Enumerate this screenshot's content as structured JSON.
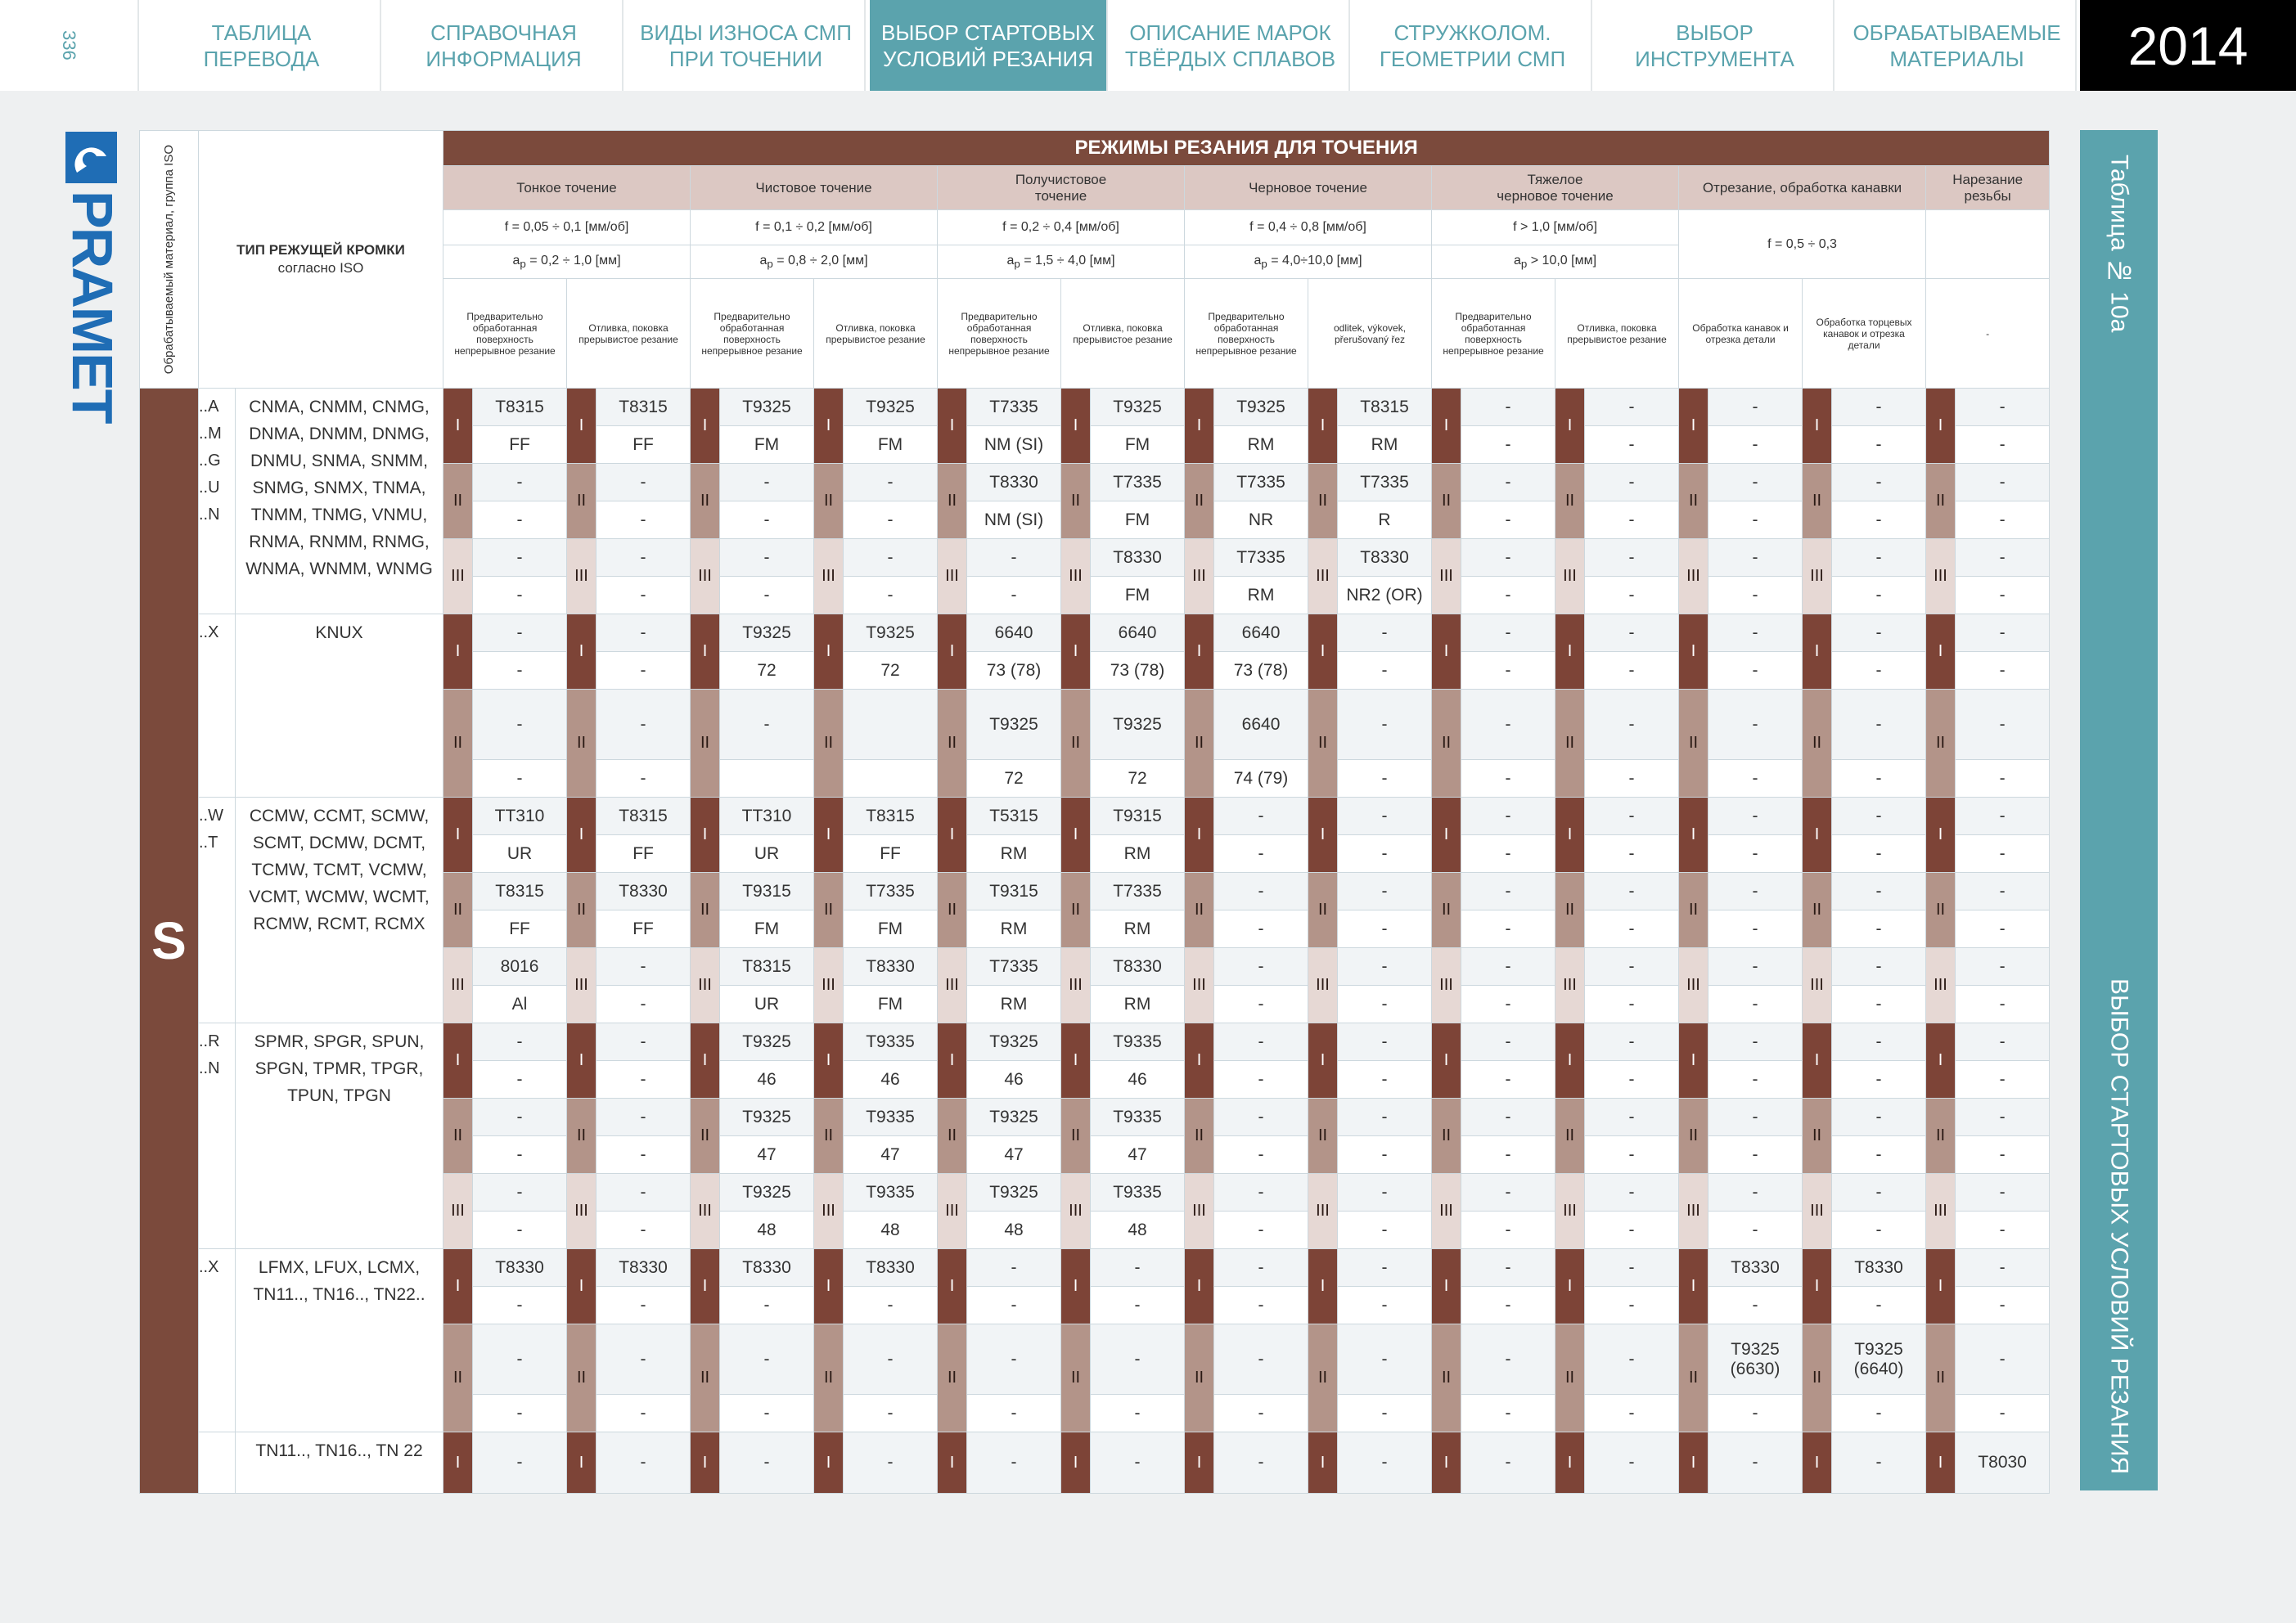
{
  "page_number": "336",
  "nav": {
    "active": 3,
    "tabs": [
      [
        "ТАБЛИЦА",
        "ПЕРЕВОДА"
      ],
      [
        "СПРАВОЧНАЯ",
        "ИНФОРМАЦИЯ"
      ],
      [
        "ВИДЫ ИЗНОСА СМП",
        "ПРИ ТОЧЕНИИ"
      ],
      [
        "ВЫБОР СТАРТОВЫХ",
        "УСЛОВИЙ РЕЗАНИЯ"
      ],
      [
        "ОПИСАНИЕ МАРОК",
        "ТВЁРДЫХ СПЛАВОВ"
      ],
      [
        "СТРУЖКОЛОМ.",
        "ГЕОМЕТРИИ СМП"
      ],
      [
        "ВЫБОР",
        "ИНСТРУМЕНТА"
      ],
      [
        "ОБРАБАТЫВАЕМЫЕ",
        "МАТЕРИАЛЫ"
      ]
    ]
  },
  "year": "2014",
  "logo": "PRAMET",
  "side": {
    "table_no": "Таблица № 10а",
    "title": "ВЫБОР СТАРТОВЫХ УСЛОВИЙ РЕЗАНИЯ"
  },
  "table": {
    "material_header": "Обрабатываемый материал, группа ISO",
    "type_header": [
      "ТИП РЕЖУЩЕЙ КРОМКИ",
      "согласно ISO"
    ],
    "title": "РЕЖИМЫ РЕЗАНИЯ ДЛЯ ТОЧЕНИЯ",
    "ap_symbol": "a",
    "ap_sub": "p",
    "operations": [
      {
        "name": [
          "Тонкое точение"
        ],
        "f": "f = 0,05 ÷ 0,1 [мм/об]",
        "ap": " = 0,2 ÷ 1,0 [мм]",
        "conditions": [
          "Предварительно обработанная поверхность непрерывное резание",
          "Отливка, поковка прерывистое резание"
        ]
      },
      {
        "name": [
          "Чистовое точение"
        ],
        "f": "f = 0,1 ÷ 0,2 [мм/об]",
        "ap": " = 0,8 ÷ 2,0 [мм]",
        "conditions": [
          "Предварительно обработанная поверхность непрерывное резание",
          "Отливка, поковка прерывистое резание"
        ]
      },
      {
        "name": [
          "Получистовое",
          "точение"
        ],
        "f": "f = 0,2 ÷ 0,4 [мм/об]",
        "ap": " = 1,5 ÷ 4,0 [мм]",
        "conditions": [
          "Предварительно обработанная поверхность непрерывное резание",
          "Отливка, поковка прерывистое резание"
        ]
      },
      {
        "name": [
          "Черновое точение"
        ],
        "f": "f = 0,4 ÷ 0,8 [мм/об]",
        "ap": " = 4,0÷10,0 [мм]",
        "conditions": [
          "Предварительно обработанная поверхность непрерывное резание",
          "odlitek, výkovek, přerušovaný řez"
        ]
      },
      {
        "name": [
          "Тяжелое",
          "черновое точение"
        ],
        "f": "f > 1,0 [мм/об]",
        "ap": " > 10,0 [мм]",
        "conditions": [
          "Предварительно обработанная поверхность непрерывное резание",
          "Отливка, поковка прерывистое резание"
        ]
      },
      {
        "name": [
          "Отрезание, обработка канавки"
        ],
        "f_ap": "f = 0,5 ÷ 0,3",
        "conditions": [
          "Обработка канавок и отрезка детали",
          "Обработка торцевых канавок и отрезка детали"
        ]
      },
      {
        "name": [
          "Нарезание",
          "резьбы"
        ],
        "conditions": [
          "-"
        ]
      }
    ],
    "material": "S",
    "groups": [
      {
        "codes": [
          "..A",
          "..M",
          "..G",
          "..U",
          "..N"
        ],
        "types": "CNMA, CNMM, CNMG, DNMA, DNMM, DNMG, DNMU, SNMA, SNMM, SNMG, SNMX, TNMA, TNMM, TNMG, VNMU, RNMA, RNMM, RNMG, WNMA, WNMM, WNMG",
        "levels": [
          {
            "level": "I",
            "cells": [
              [
                "T8315",
                "FF"
              ],
              [
                "T8315",
                "FF"
              ],
              [
                "T9325",
                "FM"
              ],
              [
                "T9325",
                "FM"
              ],
              [
                "T7335",
                "NM (SI)"
              ],
              [
                "T9325",
                "FM"
              ],
              [
                "T9325",
                "RM"
              ],
              [
                "T8315",
                "RM"
              ],
              [
                "-",
                "-"
              ],
              [
                "-",
                "-"
              ],
              [
                "-",
                "-"
              ],
              [
                "-",
                "-"
              ],
              [
                "-",
                "-"
              ]
            ]
          },
          {
            "level": "II",
            "cells": [
              [
                "-",
                "-"
              ],
              [
                "-",
                "-"
              ],
              [
                "-",
                "-"
              ],
              [
                "-",
                "-"
              ],
              [
                "T8330",
                "NM (SI)"
              ],
              [
                "T7335",
                "FM"
              ],
              [
                "T7335",
                "NR"
              ],
              [
                "T7335",
                "R"
              ],
              [
                "-",
                "-"
              ],
              [
                "-",
                "-"
              ],
              [
                "-",
                "-"
              ],
              [
                "-",
                "-"
              ],
              [
                "-",
                "-"
              ]
            ]
          },
          {
            "level": "III",
            "cells": [
              [
                "-",
                "-"
              ],
              [
                "-",
                "-"
              ],
              [
                "-",
                "-"
              ],
              [
                "-",
                "-"
              ],
              [
                "-",
                "-"
              ],
              [
                "T8330",
                "FM"
              ],
              [
                "T7335",
                "RM"
              ],
              [
                "T8330",
                "NR2 (OR)"
              ],
              [
                "-",
                "-"
              ],
              [
                "-",
                "-"
              ],
              [
                "-",
                "-"
              ],
              [
                "-",
                "-"
              ],
              [
                "-",
                "-"
              ]
            ]
          }
        ]
      },
      {
        "codes": [
          "..X"
        ],
        "types": "KNUX",
        "levels": [
          {
            "level": "I",
            "cells": [
              [
                "-",
                "-"
              ],
              [
                "-",
                "-"
              ],
              [
                "T9325",
                "72"
              ],
              [
                "T9325",
                "72"
              ],
              [
                "6640",
                "73 (78)"
              ],
              [
                "6640",
                "73 (78)"
              ],
              [
                "6640",
                "73 (78)"
              ],
              [
                "-",
                "-"
              ],
              [
                "-",
                "-"
              ],
              [
                "-",
                "-"
              ],
              [
                "-",
                "-"
              ],
              [
                "-",
                "-"
              ],
              [
                "-",
                "-"
              ]
            ]
          },
          {
            "level": "II",
            "cells": [
              [
                "-",
                "-"
              ],
              [
                "-",
                "-"
              ],
              [
                "-",
                null
              ],
              [
                null,
                null
              ],
              [
                "T9325",
                "72"
              ],
              [
                "T9325",
                "72"
              ],
              [
                "6640",
                "74 (79)"
              ],
              [
                "-",
                "-"
              ],
              [
                "-",
                "-"
              ],
              [
                "-",
                "-"
              ],
              [
                "-",
                "-"
              ],
              [
                "-",
                "-"
              ],
              [
                "-",
                "-"
              ]
            ]
          }
        ]
      },
      {
        "codes": [
          "..W",
          "..T"
        ],
        "types": "CCMW, CCMT, SCMW, SCMT, DCMW, DCMT, TCMW, TCMT, VCMW, VCMT, WCMW, WCMT, RCMW, RCMT, RCMX",
        "levels": [
          {
            "level": "I",
            "cells": [
              [
                "TT310",
                "UR"
              ],
              [
                "T8315",
                "FF"
              ],
              [
                "TT310",
                "UR"
              ],
              [
                "T8315",
                "FF"
              ],
              [
                "T5315",
                "RM"
              ],
              [
                "T9315",
                "RM"
              ],
              [
                "-",
                "-"
              ],
              [
                "-",
                "-"
              ],
              [
                "-",
                "-"
              ],
              [
                "-",
                "-"
              ],
              [
                "-",
                "-"
              ],
              [
                "-",
                "-"
              ],
              [
                "-",
                "-"
              ]
            ]
          },
          {
            "level": "II",
            "cells": [
              [
                "T8315",
                "FF"
              ],
              [
                "T8330",
                "FF"
              ],
              [
                "T9315",
                "FM"
              ],
              [
                "T7335",
                "FM"
              ],
              [
                "T9315",
                "RM"
              ],
              [
                "T7335",
                "RM"
              ],
              [
                "-",
                "-"
              ],
              [
                "-",
                "-"
              ],
              [
                "-",
                "-"
              ],
              [
                "-",
                "-"
              ],
              [
                "-",
                "-"
              ],
              [
                "-",
                "-"
              ],
              [
                "-",
                "-"
              ]
            ]
          },
          {
            "level": "III",
            "cells": [
              [
                "8016",
                "Al"
              ],
              [
                "-",
                "-"
              ],
              [
                "T8315",
                "UR"
              ],
              [
                "T8330",
                "FM"
              ],
              [
                "T7335",
                "RM"
              ],
              [
                "T8330",
                "RM"
              ],
              [
                "-",
                "-"
              ],
              [
                "-",
                "-"
              ],
              [
                "-",
                "-"
              ],
              [
                "-",
                "-"
              ],
              [
                "-",
                "-"
              ],
              [
                "-",
                "-"
              ],
              [
                "-",
                "-"
              ]
            ]
          }
        ]
      },
      {
        "codes": [
          "..R",
          "..N"
        ],
        "types": "SPMR, SPGR, SPUN, SPGN, TPMR, TPGR, TPUN, TPGN",
        "levels": [
          {
            "level": "I",
            "cells": [
              [
                "-",
                "-"
              ],
              [
                "-",
                "-"
              ],
              [
                "T9325",
                "46"
              ],
              [
                "T9335",
                "46"
              ],
              [
                "T9325",
                "46"
              ],
              [
                "T9335",
                "46"
              ],
              [
                "-",
                "-"
              ],
              [
                "-",
                "-"
              ],
              [
                "-",
                "-"
              ],
              [
                "-",
                "-"
              ],
              [
                "-",
                "-"
              ],
              [
                "-",
                "-"
              ],
              [
                "-",
                "-"
              ]
            ]
          },
          {
            "level": "II",
            "cells": [
              [
                "-",
                "-"
              ],
              [
                "-",
                "-"
              ],
              [
                "T9325",
                "47"
              ],
              [
                "T9335",
                "47"
              ],
              [
                "T9325",
                "47"
              ],
              [
                "T9335",
                "47"
              ],
              [
                "-",
                "-"
              ],
              [
                "-",
                "-"
              ],
              [
                "-",
                "-"
              ],
              [
                "-",
                "-"
              ],
              [
                "-",
                "-"
              ],
              [
                "-",
                "-"
              ],
              [
                "-",
                "-"
              ]
            ]
          },
          {
            "level": "III",
            "cells": [
              [
                "-",
                "-"
              ],
              [
                "-",
                "-"
              ],
              [
                "T9325",
                "48"
              ],
              [
                "T9335",
                "48"
              ],
              [
                "T9325",
                "48"
              ],
              [
                "T9335",
                "48"
              ],
              [
                "-",
                "-"
              ],
              [
                "-",
                "-"
              ],
              [
                "-",
                "-"
              ],
              [
                "-",
                "-"
              ],
              [
                "-",
                "-"
              ],
              [
                "-",
                "-"
              ],
              [
                "-",
                "-"
              ]
            ]
          }
        ]
      },
      {
        "codes": [
          "..X"
        ],
        "types": "LFMX, LFUX, LCMX, TN11.., TN16.., TN22..",
        "levels": [
          {
            "level": "I",
            "cells": [
              [
                "T8330",
                "-"
              ],
              [
                "T8330",
                "-"
              ],
              [
                "T8330",
                "-"
              ],
              [
                "T8330",
                "-"
              ],
              [
                "-",
                "-"
              ],
              [
                "-",
                "-"
              ],
              [
                "-",
                "-"
              ],
              [
                "-",
                "-"
              ],
              [
                "-",
                "-"
              ],
              [
                "-",
                "-"
              ],
              [
                "T8330",
                "-"
              ],
              [
                "T8330",
                "-"
              ],
              [
                "-",
                "-"
              ]
            ]
          },
          {
            "level": "II",
            "cells": [
              [
                "-",
                "-"
              ],
              [
                "-",
                "-"
              ],
              [
                "-",
                "-"
              ],
              [
                "-",
                "-"
              ],
              [
                "-",
                "-"
              ],
              [
                "-",
                "-"
              ],
              [
                "-",
                "-"
              ],
              [
                "-",
                "-"
              ],
              [
                "-",
                "-"
              ],
              [
                "-",
                "-"
              ],
              [
                "T9325 (6630)",
                "-"
              ],
              [
                "T9325 (6640)",
                "-"
              ],
              [
                "-",
                "-"
              ]
            ]
          }
        ]
      },
      {
        "types": "TN11.., TN16.., TN 22",
        "levels": [
          {
            "level": "I",
            "cells": [
              [
                "-"
              ],
              [
                "-"
              ],
              [
                "-"
              ],
              [
                "-"
              ],
              [
                "-"
              ],
              [
                "-"
              ],
              [
                "-"
              ],
              [
                "-"
              ],
              [
                "-"
              ],
              [
                "-"
              ],
              [
                "-"
              ],
              [
                "-"
              ],
              [
                "T8030"
              ]
            ]
          }
        ]
      }
    ]
  }
}
